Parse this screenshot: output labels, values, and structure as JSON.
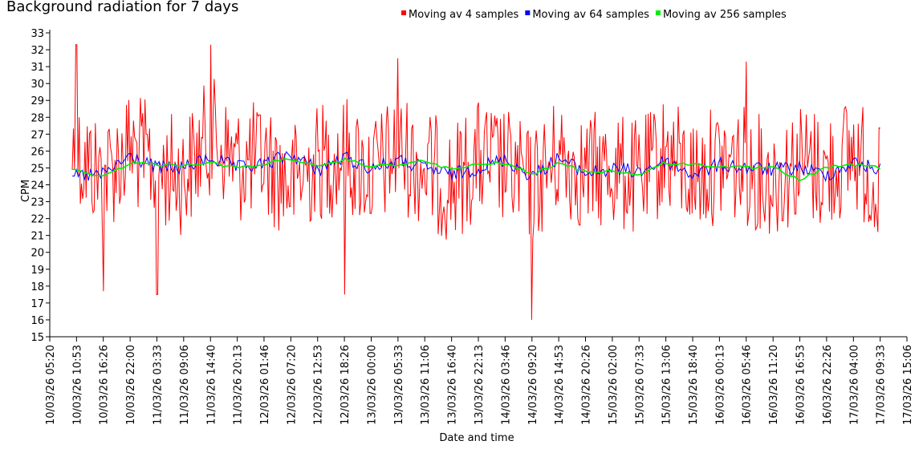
{
  "chart_data": {
    "type": "line",
    "title": "Background radiation for 7 days",
    "xlabel": "Date and time",
    "ylabel": "CPM",
    "ylim": [
      15,
      33
    ],
    "yticks": [
      15,
      16,
      17,
      18,
      19,
      20,
      21,
      22,
      23,
      24,
      25,
      26,
      27,
      28,
      29,
      30,
      31,
      32,
      33
    ],
    "xticks": [
      "10/03/26 05:20",
      "10/03/26 10:53",
      "10/03/26 16:26",
      "10/03/26 22:00",
      "11/03/26 03:33",
      "11/03/26 09:06",
      "11/03/26 14:40",
      "11/03/26 20:13",
      "12/03/26 01:46",
      "12/03/26 07:20",
      "12/03/26 12:53",
      "12/03/26 18:26",
      "13/03/26 00:00",
      "13/03/26 05:33",
      "13/03/26 11:06",
      "13/03/26 16:40",
      "13/03/26 22:13",
      "14/03/26 03:46",
      "14/03/26 09:20",
      "14/03/26 14:53",
      "14/03/26 20:26",
      "15/03/26 02:00",
      "15/03/26 07:33",
      "15/03/26 13:06",
      "15/03/26 18:40",
      "16/03/26 00:13",
      "16/03/26 05:46",
      "16/03/26 11:20",
      "16/03/26 16:53",
      "16/03/26 22:26",
      "17/03/26 04:00",
      "17/03/26 09:33",
      "17/03/26 15:06"
    ],
    "grid": false,
    "legend_position": "top",
    "series": [
      {
        "name": "Moving av 4 samples",
        "color": "#ff0000",
        "x": [
          "10/03/26 10:00",
          "10/03/26 16:26",
          "10/03/26 22:00",
          "11/03/26 03:33",
          "11/03/26 09:06",
          "11/03/26 14:40",
          "11/03/26 20:13",
          "12/03/26 01:46",
          "12/03/26 07:20",
          "12/03/26 12:53",
          "12/03/26 18:26",
          "13/03/26 00:00",
          "13/03/26 05:33",
          "13/03/26 11:06",
          "13/03/26 16:40",
          "13/03/26 22:13",
          "14/03/26 03:46",
          "14/03/26 09:20",
          "14/03/26 14:53",
          "14/03/26 20:26",
          "15/03/26 02:00",
          "15/03/26 07:33",
          "15/03/26 13:06",
          "15/03/26 18:40",
          "16/03/26 00:13",
          "16/03/26 05:46",
          "16/03/26 11:20",
          "16/03/26 16:53",
          "16/03/26 22:26",
          "17/03/26 04:00",
          "17/03/26 09:33"
        ],
        "y": [
          26.0,
          24.5,
          26.2,
          25.0,
          24.5,
          27.0,
          25.2,
          25.5,
          24.0,
          25.3,
          25.8,
          24.6,
          25.9,
          25.0,
          24.0,
          25.5,
          25.0,
          23.8,
          25.7,
          24.7,
          25.0,
          24.2,
          25.9,
          24.5,
          25.3,
          25.1,
          24.3,
          25.4,
          24.7,
          26.0,
          23.8
        ],
        "peaks": [
          {
            "x": "10/03/26 10:53",
            "y": 32.3
          },
          {
            "x": "10/03/26 16:26",
            "y": 17.7
          },
          {
            "x": "11/03/26 03:33",
            "y": 17.5
          },
          {
            "x": "11/03/26 14:40",
            "y": 32.3
          },
          {
            "x": "12/03/26 18:26",
            "y": 17.5
          },
          {
            "x": "13/03/26 05:33",
            "y": 31.5
          },
          {
            "x": "14/03/26 09:20",
            "y": 16.0
          },
          {
            "x": "16/03/26 05:46",
            "y": 31.3
          }
        ]
      },
      {
        "name": "Moving av 64 samples",
        "color": "#0000ff",
        "x": [
          "10/03/26 10:00",
          "10/03/26 16:26",
          "10/03/26 22:00",
          "11/03/26 03:33",
          "11/03/26 09:06",
          "11/03/26 14:40",
          "11/03/26 20:13",
          "12/03/26 01:46",
          "12/03/26 07:20",
          "12/03/26 12:53",
          "12/03/26 18:26",
          "13/03/26 00:00",
          "13/03/26 05:33",
          "13/03/26 11:06",
          "13/03/26 16:40",
          "13/03/26 22:13",
          "14/03/26 03:46",
          "14/03/26 09:20",
          "14/03/26 14:53",
          "14/03/26 20:26",
          "15/03/26 02:00",
          "15/03/26 07:33",
          "15/03/26 13:06",
          "15/03/26 18:40",
          "16/03/26 00:13",
          "16/03/26 05:46",
          "16/03/26 11:20",
          "16/03/26 16:53",
          "16/03/26 22:26",
          "17/03/26 04:00",
          "17/03/26 09:33"
        ],
        "y": [
          24.5,
          24.6,
          25.7,
          25.0,
          25.0,
          25.6,
          25.0,
          25.2,
          25.8,
          24.9,
          25.6,
          25.0,
          25.4,
          25.0,
          24.6,
          25.0,
          25.5,
          24.5,
          25.6,
          24.7,
          24.9,
          24.8,
          25.4,
          24.6,
          25.2,
          25.0,
          24.9,
          25.0,
          24.6,
          25.3,
          24.9
        ]
      },
      {
        "name": "Moving av 256 samples",
        "color": "#00ee00",
        "x": [
          "10/03/26 10:00",
          "10/03/26 16:26",
          "10/03/26 22:00",
          "11/03/26 03:33",
          "11/03/26 09:06",
          "11/03/26 14:40",
          "11/03/26 20:13",
          "12/03/26 01:46",
          "12/03/26 07:20",
          "12/03/26 12:53",
          "12/03/26 18:26",
          "13/03/26 00:00",
          "13/03/26 05:33",
          "13/03/26 11:06",
          "13/03/26 16:40",
          "13/03/26 22:13",
          "14/03/26 03:46",
          "14/03/26 09:20",
          "14/03/26 14:53",
          "14/03/26 20:26",
          "15/03/26 02:00",
          "15/03/26 07:33",
          "15/03/26 13:06",
          "15/03/26 18:40",
          "16/03/26 00:13",
          "16/03/26 05:46",
          "16/03/26 11:20",
          "16/03/26 16:53",
          "16/03/26 22:26",
          "17/03/26 04:00",
          "17/03/26 09:33"
        ],
        "y": [
          24.9,
          24.5,
          25.3,
          25.2,
          25.2,
          25.3,
          25.0,
          25.2,
          25.6,
          25.0,
          25.5,
          25.1,
          25.2,
          25.4,
          24.9,
          25.2,
          25.3,
          24.6,
          25.3,
          24.8,
          24.8,
          24.6,
          25.3,
          25.2,
          25.1,
          25.0,
          25.0,
          24.3,
          25.0,
          25.2,
          25.0
        ]
      }
    ]
  }
}
